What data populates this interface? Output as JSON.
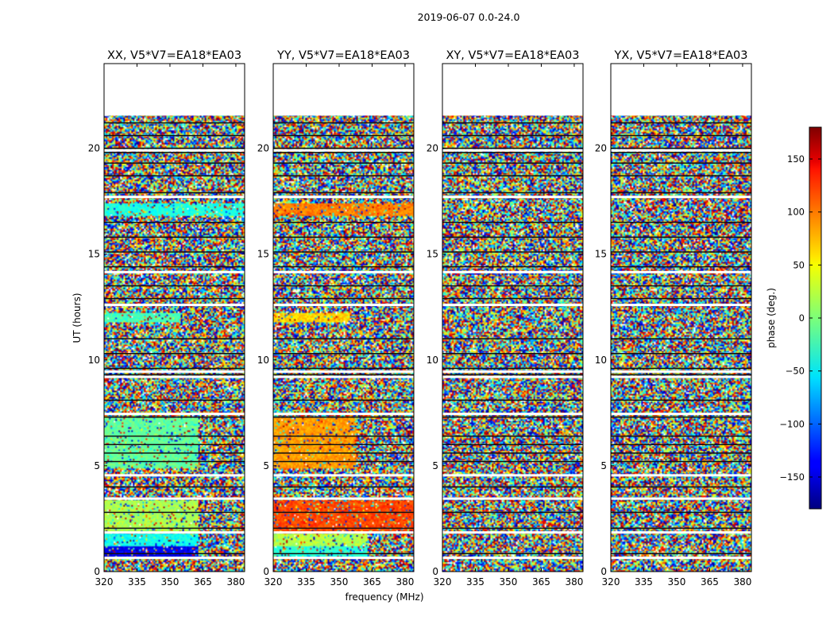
{
  "chart_data": {
    "type": "heatmap",
    "suptitle": "2019-06-07 0.0-24.0",
    "xlabel": "frequency (MHz)",
    "ylabel": "UT (hours)",
    "xlim": [
      320,
      384
    ],
    "ylim": [
      0,
      24
    ],
    "xticks": [
      320,
      335,
      350,
      365,
      380
    ],
    "yticks": [
      0,
      5,
      10,
      15,
      20
    ],
    "data_extent_hours": [
      0,
      21.6
    ],
    "panels": [
      {
        "title": "XX, V5*V7=EA18*EA03",
        "coherent_blocks": [
          {
            "t_start": 0.7,
            "t_end": 1.2,
            "f_start": 320,
            "f_end": 363,
            "phase_deg": -140
          },
          {
            "t_start": 1.2,
            "t_end": 1.8,
            "f_start": 320,
            "f_end": 363,
            "phase_deg": -40
          },
          {
            "t_start": 1.9,
            "t_end": 3.4,
            "f_start": 320,
            "f_end": 363,
            "phase_deg": 15
          },
          {
            "t_start": 4.9,
            "t_end": 7.3,
            "f_start": 320,
            "f_end": 363,
            "phase_deg": -10
          },
          {
            "t_start": 11.8,
            "t_end": 12.2,
            "f_start": 320,
            "f_end": 355,
            "phase_deg": -20
          },
          {
            "t_start": 16.8,
            "t_end": 17.4,
            "f_start": 320,
            "f_end": 384,
            "phase_deg": -35
          }
        ]
      },
      {
        "title": "YY, V5*V7=EA18*EA03",
        "coherent_blocks": [
          {
            "t_start": 0.7,
            "t_end": 1.2,
            "f_start": 320,
            "f_end": 363,
            "phase_deg": -30
          },
          {
            "t_start": 1.2,
            "t_end": 1.8,
            "f_start": 320,
            "f_end": 363,
            "phase_deg": 20
          },
          {
            "t_start": 1.9,
            "t_end": 3.4,
            "f_start": 320,
            "f_end": 384,
            "phase_deg": 110
          },
          {
            "t_start": 4.9,
            "t_end": 7.3,
            "f_start": 320,
            "f_end": 358,
            "phase_deg": 80
          },
          {
            "t_start": 11.8,
            "t_end": 12.2,
            "f_start": 320,
            "f_end": 355,
            "phase_deg": 60
          },
          {
            "t_start": 16.8,
            "t_end": 17.4,
            "f_start": 320,
            "f_end": 384,
            "phase_deg": 90
          }
        ]
      },
      {
        "title": "XY, V5*V7=EA18*EA03",
        "coherent_blocks": []
      },
      {
        "title": "YX, V5*V7=EA18*EA03",
        "coherent_blocks": []
      }
    ],
    "colorbar": {
      "label": "phase (deg.)",
      "range": [
        -180,
        180
      ],
      "ticks": [
        -150,
        -100,
        -50,
        0,
        50,
        100,
        150
      ],
      "tick_labels": [
        "−150",
        "−100",
        "−50",
        "0",
        "50",
        "100",
        "150"
      ],
      "colormap": "jet"
    },
    "flagged_hours": [
      0.65,
      1.85,
      3.45,
      4.55,
      7.45,
      9.2,
      9.45,
      12.6,
      14.15,
      17.7,
      19.9,
      21.6
    ],
    "dark_hours": [
      0.85,
      2.05,
      2.8,
      4.0,
      5.2,
      5.6,
      6.0,
      6.4,
      7.3,
      8.1,
      9.3,
      9.6,
      10.3,
      11.0,
      12.9,
      13.5,
      14.4,
      15.1,
      15.8,
      16.5,
      17.9,
      18.7,
      19.3,
      19.8,
      20.0,
      20.6,
      21.2
    ]
  }
}
